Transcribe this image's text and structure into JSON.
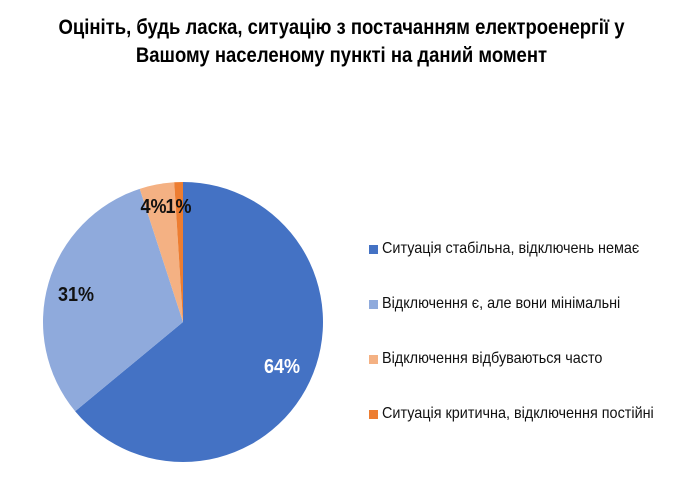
{
  "title": {
    "line1": "Оцініть, будь ласка, ситуацію з постачанням електроенергії у",
    "line2": "Вашому населеному пункті на даний момент"
  },
  "legend": [
    {
      "label": "Ситуація стабільна, відключень немає",
      "color": "#4472C4"
    },
    {
      "label": "Відключення є, але вони мінімальні",
      "color": "#8FAADC"
    },
    {
      "label": "Відключення відбуваються часто",
      "color": "#F4B183"
    },
    {
      "label": "Ситуація критична, відключення постійні",
      "color": "#ED7D31"
    }
  ],
  "labels": [
    "64%",
    "31%",
    "4%",
    "1%"
  ],
  "chart_data": {
    "type": "pie",
    "title": "Оцініть, будь ласка, ситуацію з постачанням електроенергії у Вашому населеному пункті на даний момент",
    "categories": [
      "Ситуація стабільна, відключень немає",
      "Відключення є, але вони мінімальні",
      "Відключення відбуваються часто",
      "Ситуація критична, відключення постійні"
    ],
    "values": [
      64,
      31,
      4,
      1
    ],
    "unit": "%",
    "colors": [
      "#4472C4",
      "#8FAADC",
      "#F4B183",
      "#ED7D31"
    ],
    "legend_position": "right",
    "start_angle": "12 o'clock, clockwise"
  }
}
